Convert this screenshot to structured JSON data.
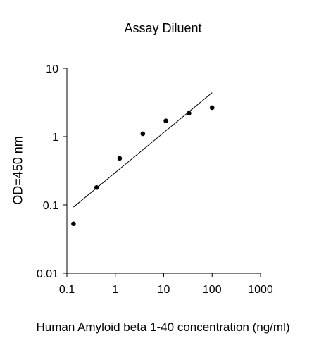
{
  "chart_data": {
    "type": "scatter",
    "title": "Assay Diluent",
    "xlabel": "Human Amyloid beta 1-40 concentration (ng/ml)",
    "ylabel": "OD=450 nm",
    "x_scale": "log",
    "y_scale": "log",
    "xlim": [
      0.1,
      1000
    ],
    "ylim": [
      0.01,
      10
    ],
    "x_ticks": [
      0.1,
      1,
      10,
      100,
      1000
    ],
    "x_tick_labels": [
      "0.1",
      "1",
      "10",
      "100",
      "1000"
    ],
    "y_ticks": [
      0.01,
      0.1,
      1,
      10
    ],
    "y_tick_labels": [
      "0.01",
      "0.1",
      "1",
      "10"
    ],
    "grid": false,
    "legend": "none",
    "series": [
      {
        "points": [
          {
            "x": 0.137,
            "y": 0.053
          },
          {
            "x": 0.412,
            "y": 0.18
          },
          {
            "x": 1.23,
            "y": 0.48
          },
          {
            "x": 3.7,
            "y": 1.1
          },
          {
            "x": 11.1,
            "y": 1.7
          },
          {
            "x": 33.3,
            "y": 2.2
          },
          {
            "x": 100,
            "y": 2.65
          }
        ],
        "color": "#000000"
      }
    ],
    "fit_line": {
      "start": {
        "x": 0.137,
        "y": 0.093
      },
      "end": {
        "x": 100,
        "y": 4.4
      },
      "color": "#000000"
    }
  }
}
